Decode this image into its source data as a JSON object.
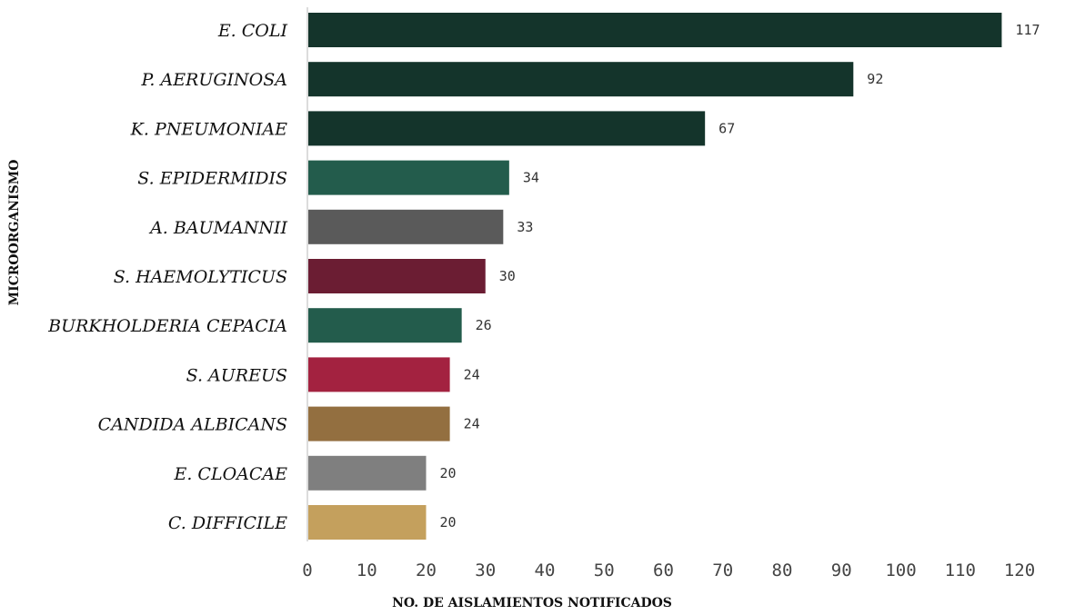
{
  "chart_data": {
    "type": "bar",
    "orientation": "horizontal",
    "categories": [
      "E. COLI",
      "P. AERUGINOSA",
      "K. PNEUMONIAE",
      "S. EPIDERMIDIS",
      "A. BAUMANNII",
      "S. HAEMOLYTICUS",
      "BURKHOLDERIA CEPACIA",
      "S. AUREUS",
      "CANDIDA ALBICANS",
      "E. CLOACAE",
      "C. DIFFICILE"
    ],
    "values": [
      117,
      92,
      67,
      34,
      33,
      30,
      26,
      24,
      24,
      20,
      20
    ],
    "colors": [
      "#14342b",
      "#14342b",
      "#14342b",
      "#235c4c",
      "#5a5a5a",
      "#6b1d33",
      "#235c4c",
      "#a32240",
      "#936f40",
      "#7f7f7f",
      "#c4a05d"
    ],
    "xlabel": "NO. DE AISLAMIENTOS NOTIFICADOS",
    "ylabel": "MICROORGANISMO",
    "xlim": [
      0,
      120
    ],
    "xticks": [
      0,
      10,
      20,
      30,
      40,
      50,
      60,
      70,
      80,
      90,
      100,
      110,
      120
    ],
    "grid": false,
    "data_labels": true
  }
}
